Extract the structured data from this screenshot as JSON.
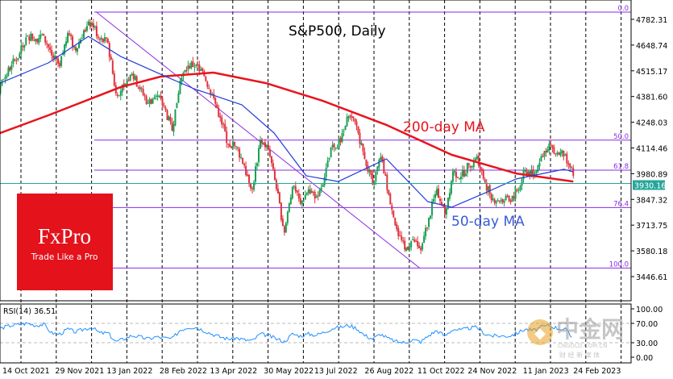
{
  "chart_data": {
    "type": "candlestick",
    "title": "S&P500, Daily",
    "price_axis": {
      "ticks": [
        "4782.31",
        "4648.74",
        "4515.17",
        "4381.60",
        "4248.03",
        "4114.46",
        "3980.89",
        "3847.32",
        "3713.75",
        "3580.18",
        "3446.61"
      ],
      "range": [
        3400,
        4870
      ]
    },
    "date_axis": {
      "ticks": [
        "14 Oct 2021",
        "29 Nov 2021",
        "13 Jan 2022",
        "28 Feb 2022",
        "13 Apr 2022",
        "30 May 2022",
        "13 Jul 2022",
        "26 Aug 2022",
        "11 Oct 2022",
        "24 Nov 2022",
        "11 Jan 2023",
        "24 Feb 2023"
      ],
      "tick_dates": [
        "2021-10-14",
        "2021-11-29",
        "2022-01-13",
        "2022-02-28",
        "2022-04-13",
        "2022-05-30",
        "2022-07-13",
        "2022-08-26",
        "2022-10-11",
        "2022-11-24",
        "2023-01-11",
        "2023-02-24"
      ]
    },
    "price_series": {
      "frequency": "weekly",
      "start": "2021-09-24",
      "close": [
        4455,
        4357,
        4391,
        4471,
        4545,
        4605,
        4697,
        4682,
        4698,
        4595,
        4538,
        4712,
        4620,
        4725,
        4766,
        4677,
        4662,
        4398,
        4432,
        4500,
        4419,
        4349,
        4385,
        4329,
        4204,
        4463,
        4543,
        4546,
        4488,
        4392,
        4272,
        4132,
        4123,
        4024,
        3901,
        4158,
        4109,
        3901,
        3675,
        3912,
        3825,
        3899,
        3863,
        3962,
        4130,
        4145,
        4280,
        4228,
        4058,
        3924,
        4067,
        3873,
        3693,
        3586,
        3640,
        3583,
        3752,
        3901,
        3771,
        3993,
        3965,
        4026,
        4072,
        3934,
        3852,
        3845,
        3840,
        3895,
        3999,
        3973,
        4071,
        4136,
        4090,
        4079,
        3970
      ]
    },
    "current_price": "3930.16",
    "series": [
      {
        "name": "200-day MA",
        "color": "#e8141e",
        "dates": [
          "2021-10-12",
          "2021-11-23",
          "2022-01-25",
          "2022-03-01",
          "2022-04-16",
          "2022-06-01",
          "2022-07-20",
          "2022-09-14",
          "2022-11-10",
          "2023-01-05",
          "2023-02-24"
        ],
        "values": [
          4192,
          4284,
          4430,
          4485,
          4506,
          4451,
          4360,
          4234,
          4079,
          3982,
          3940
        ]
      },
      {
        "name": "50-day MA",
        "color": "#1e3cdc",
        "dates": [
          "2021-10-12",
          "2021-11-23",
          "2021-12-28",
          "2022-01-25",
          "2022-03-01",
          "2022-03-30",
          "2022-05-11",
          "2022-06-08",
          "2022-07-06",
          "2022-08-03",
          "2022-09-14",
          "2022-10-20",
          "2022-11-10",
          "2022-12-08",
          "2023-01-05",
          "2023-02-16",
          "2023-02-24"
        ],
        "values": [
          4451,
          4556,
          4694,
          4590,
          4497,
          4422,
          4338,
          4192,
          3970,
          3940,
          4058,
          3836,
          3807,
          3878,
          3953,
          4004,
          3990
        ]
      }
    ],
    "fibonacci": {
      "color": "#8a2be2",
      "high": 4820,
      "low": 3491,
      "levels": [
        {
          "label": "0.0",
          "value": 4820
        },
        {
          "label": "50.0",
          "value": 4155
        },
        {
          "label": "61.8",
          "value": 3999
        },
        {
          "label": "76.4",
          "value": 3805
        },
        {
          "label": "100.0",
          "value": 3491
        }
      ]
    },
    "trendline": {
      "from": [
        "2022-01-04",
        4820
      ],
      "to": [
        "2022-10-13",
        3491
      ]
    },
    "annotations": {
      "ma200": "200-day MA",
      "ma50": "50-day MA"
    },
    "rsi": {
      "label": "RSI(14) 36.51",
      "period": 14,
      "ticks": [
        "100.00",
        "70.00",
        "30.00",
        "0.00"
      ],
      "levels": [
        70,
        30
      ],
      "color": "#1e90ff",
      "values": [
        60,
        52,
        56,
        62,
        66,
        68,
        70,
        66,
        68,
        50,
        48,
        58,
        52,
        58,
        62,
        50,
        50,
        32,
        38,
        45,
        42,
        38,
        42,
        40,
        38,
        56,
        62,
        62,
        55,
        48,
        42,
        38,
        40,
        36,
        34,
        48,
        45,
        38,
        32,
        48,
        44,
        48,
        46,
        52,
        60,
        62,
        66,
        60,
        45,
        38,
        48,
        38,
        32,
        30,
        36,
        32,
        45,
        55,
        44,
        58,
        56,
        60,
        62,
        48,
        44,
        44,
        44,
        50,
        58,
        55,
        62,
        66,
        60,
        58,
        37
      ]
    },
    "colors": {
      "up": "#18a050",
      "down": "#e0323c",
      "price_line": "#26a69a"
    }
  },
  "logo": {
    "brand": "FxPro",
    "tagline": "Trade Like a Pro",
    "color": "#e3121b"
  },
  "watermark": {
    "text": "中金网",
    "sub": "CNGOLD.COM.CN",
    "sub2": "财 经 新 媒 体"
  }
}
